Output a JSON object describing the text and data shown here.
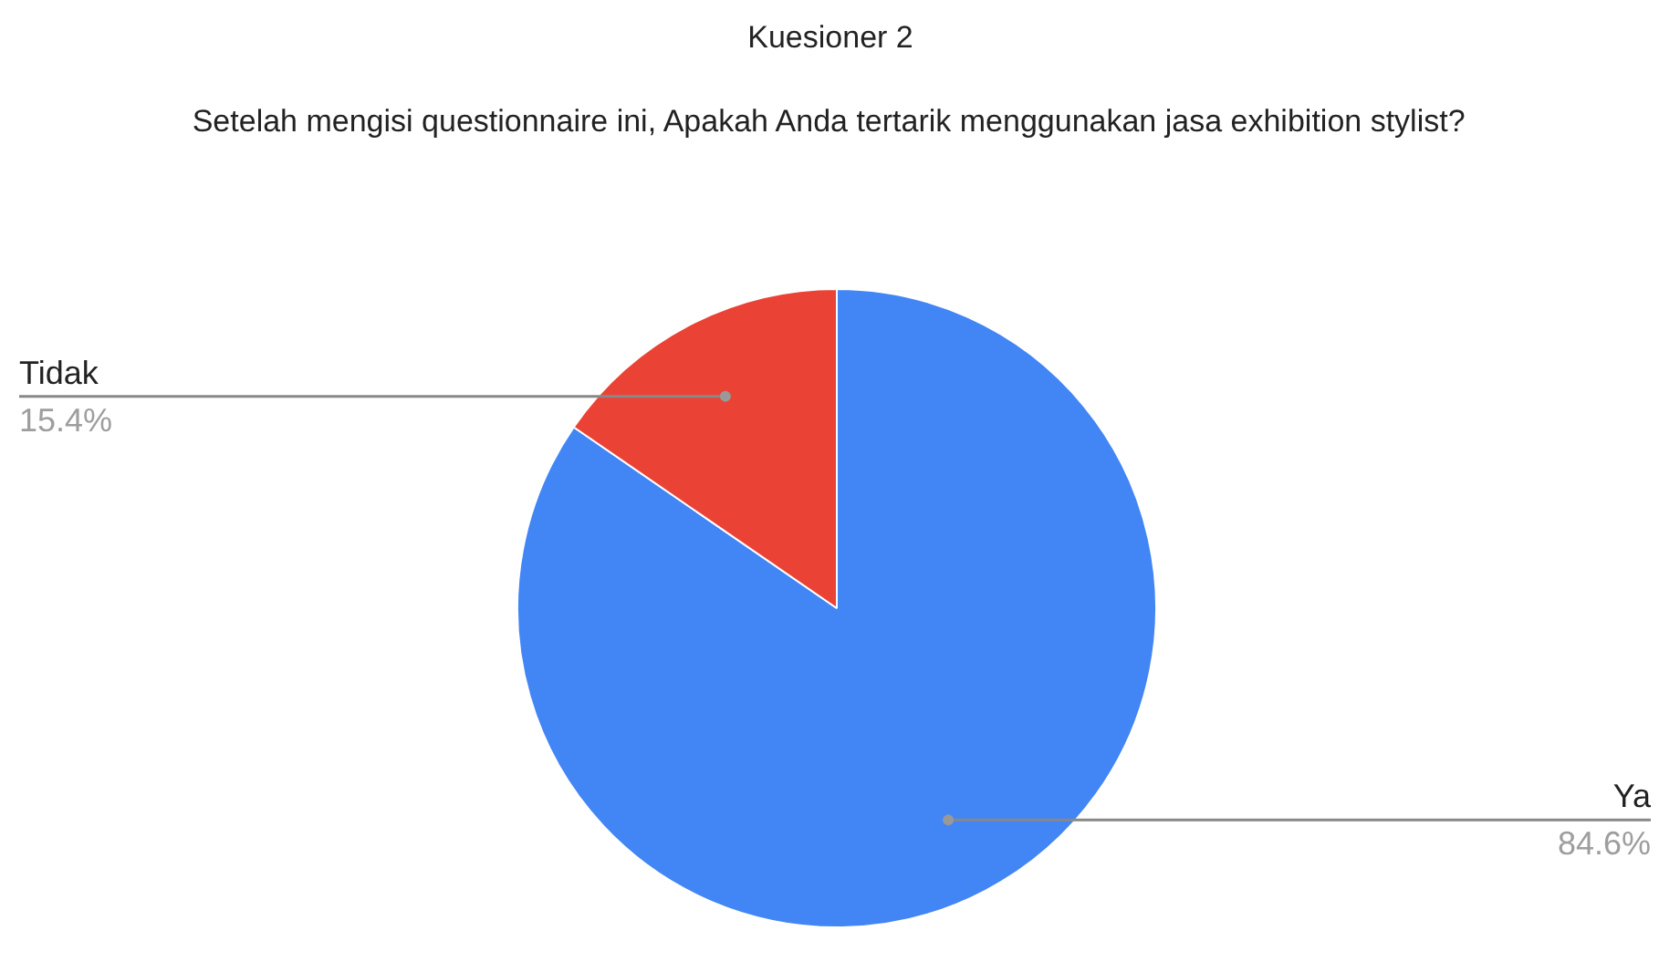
{
  "chart_data": {
    "type": "pie",
    "title": "Kuesioner 2",
    "subtitle": "Setelah mengisi questionnaire ini, Apakah Anda tertarik menggunakan jasa exhibition stylist?",
    "categories": [
      "Ya",
      "Tidak"
    ],
    "values": [
      84.6,
      15.4
    ],
    "colors": [
      "#4285f4",
      "#ea4335"
    ],
    "value_labels": [
      "84.6%",
      "15.4%"
    ]
  }
}
